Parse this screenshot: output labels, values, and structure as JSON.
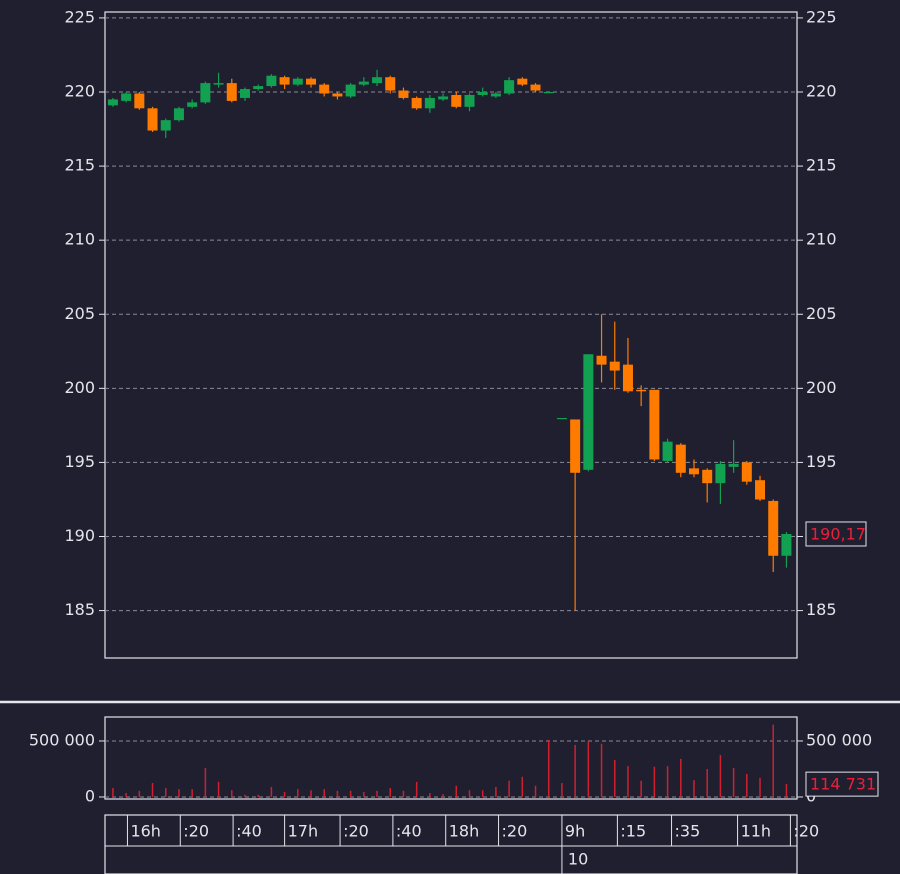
{
  "chart_data": [
    {
      "type": "candlestick",
      "up_color": "#12a150",
      "down_color": "#ff7b00",
      "ylim": [
        181.8,
        225.4
      ],
      "yticks": [
        185,
        190,
        195,
        200,
        205,
        210,
        215,
        220,
        225
      ],
      "grid": true,
      "xlim": [
        -0.6,
        51.8
      ],
      "open": [
        219.1,
        219.4,
        219.9,
        218.9,
        217.4,
        218.1,
        219.0,
        219.3,
        220.5,
        220.6,
        219.6,
        220.2,
        220.4,
        221.0,
        220.5,
        220.9,
        220.5,
        219.9,
        219.7,
        220.5,
        220.6,
        221.0,
        220.1,
        219.6,
        218.9,
        219.5,
        219.8,
        219.0,
        219.8,
        219.7,
        219.9,
        220.9,
        220.5,
        220.0,
        198.0,
        197.9,
        194.5,
        202.2,
        201.8,
        201.6,
        199.9,
        199.9,
        195.1,
        196.2,
        194.6,
        194.5,
        193.6,
        194.7,
        195.0,
        193.8,
        192.4,
        188.7
      ],
      "high": [
        219.6,
        220.0,
        220.0,
        219.0,
        218.2,
        219.0,
        219.5,
        220.7,
        221.3,
        220.9,
        220.3,
        220.5,
        221.2,
        221.1,
        221.0,
        221.0,
        220.6,
        220.0,
        220.6,
        221.0,
        221.5,
        221.1,
        220.3,
        219.7,
        219.8,
        219.9,
        220.0,
        219.9,
        220.3,
        220.0,
        221.0,
        221.0,
        220.6,
        220.0,
        198.0,
        197.9,
        202.3,
        205.0,
        204.5,
        203.4,
        200.2,
        199.9,
        196.6,
        196.3,
        195.2,
        194.6,
        195.1,
        196.5,
        195.1,
        194.1,
        192.5,
        190.3
      ],
      "low": [
        219.0,
        219.3,
        218.8,
        217.3,
        216.9,
        218.0,
        218.9,
        219.2,
        220.3,
        219.3,
        219.4,
        220.1,
        220.3,
        220.2,
        220.4,
        220.3,
        219.7,
        219.5,
        219.6,
        220.4,
        220.4,
        219.9,
        219.5,
        218.8,
        218.6,
        219.4,
        218.9,
        218.7,
        219.7,
        219.6,
        219.8,
        220.4,
        220.0,
        220.0,
        198.0,
        185.0,
        194.4,
        200.4,
        199.9,
        199.7,
        198.8,
        195.1,
        195.0,
        194.0,
        194.0,
        192.3,
        192.2,
        194.3,
        193.5,
        192.4,
        187.6,
        187.9
      ],
      "close": [
        219.5,
        219.9,
        218.9,
        217.4,
        218.1,
        218.9,
        219.3,
        220.6,
        220.6,
        219.4,
        220.2,
        220.4,
        221.1,
        220.5,
        220.9,
        220.5,
        219.9,
        219.7,
        220.5,
        220.7,
        221.0,
        220.1,
        219.6,
        218.9,
        219.6,
        219.7,
        219.0,
        219.8,
        220.0,
        219.9,
        220.8,
        220.5,
        220.1,
        220.0,
        198.0,
        194.3,
        202.3,
        201.6,
        201.2,
        199.8,
        199.8,
        195.2,
        196.4,
        194.3,
        194.2,
        193.6,
        194.9,
        194.9,
        193.7,
        192.5,
        188.7,
        190.17
      ],
      "last_value": {
        "value": 190.17,
        "label": "190,17"
      }
    },
    {
      "type": "bar",
      "color": "#d0202e",
      "ylim": [
        -18000,
        714000
      ],
      "yticks": [
        {
          "value": 0,
          "label": "0"
        },
        {
          "value": 500000,
          "label": "500 000"
        }
      ],
      "grid": true,
      "xlim": [
        -0.6,
        51.8
      ],
      "values": [
        80000,
        35000,
        55000,
        125000,
        80000,
        70000,
        70000,
        260000,
        135000,
        60000,
        20000,
        20000,
        90000,
        45000,
        70000,
        60000,
        70000,
        55000,
        55000,
        45000,
        55000,
        80000,
        55000,
        135000,
        35000,
        25000,
        100000,
        60000,
        60000,
        90000,
        145000,
        180000,
        100000,
        510000,
        125000,
        465000,
        500000,
        475000,
        330000,
        275000,
        145000,
        270000,
        275000,
        340000,
        150000,
        250000,
        375000,
        260000,
        205000,
        170000,
        645000,
        114731
      ],
      "last_value": {
        "value": 114731,
        "label": "114 731"
      },
      "xticks": [
        {
          "value": 1.1,
          "label": "16h"
        },
        {
          "value": 5.1,
          "label": ":20"
        },
        {
          "value": 9.1,
          "label": ":40"
        },
        {
          "value": 13,
          "label": "17h"
        },
        {
          "value": 17.2,
          "label": ":20"
        },
        {
          "value": 21.2,
          "label": ":40"
        },
        {
          "value": 25.2,
          "label": "18h"
        },
        {
          "value": 29.2,
          "label": ":20"
        },
        {
          "value": 34,
          "label": "9h"
        },
        {
          "value": 38.2,
          "label": ":15"
        },
        {
          "value": 42.3,
          "label": ":35"
        },
        {
          "value": 47.3,
          "label": "11h"
        },
        {
          "value": 51.3,
          "label": ":20"
        }
      ],
      "date_ticks": [
        {
          "value": 34,
          "label": "10"
        }
      ]
    }
  ]
}
